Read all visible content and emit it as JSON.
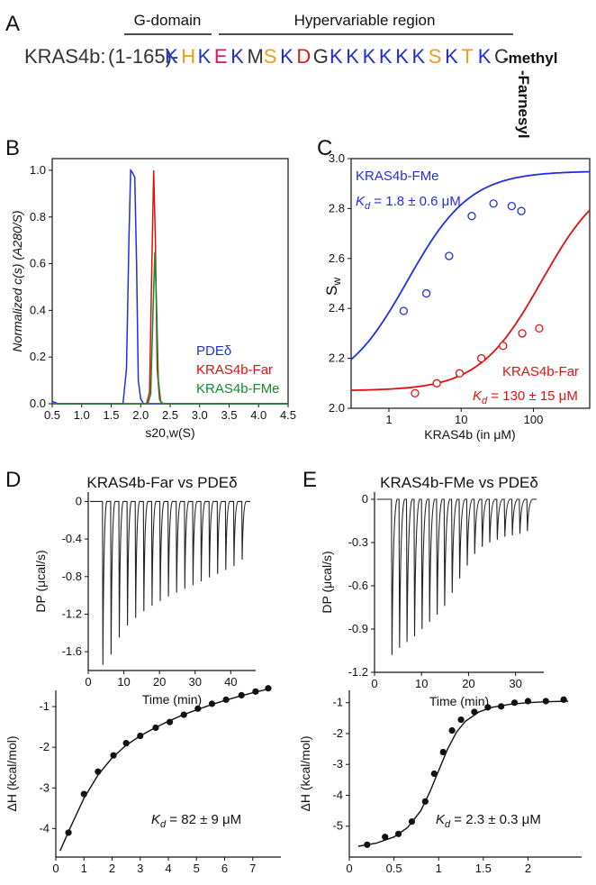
{
  "panel_a": {
    "letter": "A",
    "g_domain_label": "G-domain",
    "hvr_label": "Hypervariable region",
    "protein_prefix": "KRAS4b:",
    "range": "(1-165)-",
    "sequence": [
      {
        "t": "K",
        "c": "#1f2fd0"
      },
      {
        "t": "H",
        "c": "#f29a1c"
      },
      {
        "t": "K",
        "c": "#1f2fd0"
      },
      {
        "t": "E",
        "c": "#e0155f"
      },
      {
        "t": "K",
        "c": "#1f2fd0"
      },
      {
        "t": "M",
        "c": "#333333"
      },
      {
        "t": "S",
        "c": "#f29a1c"
      },
      {
        "t": "K",
        "c": "#1f2fd0"
      },
      {
        "t": "D",
        "c": "#e01818"
      },
      {
        "t": "G",
        "c": "#333333"
      },
      {
        "t": "K",
        "c": "#1f2fd0"
      },
      {
        "t": "K",
        "c": "#1f2fd0"
      },
      {
        "t": "K",
        "c": "#1f2fd0"
      },
      {
        "t": "K",
        "c": "#1f2fd0"
      },
      {
        "t": "K",
        "c": "#1f2fd0"
      },
      {
        "t": "K",
        "c": "#1f2fd0"
      },
      {
        "t": "S",
        "c": "#f29a1c"
      },
      {
        "t": "K",
        "c": "#1f2fd0"
      },
      {
        "t": "T",
        "c": "#f29a1c"
      },
      {
        "t": "K",
        "c": "#1f2fd0"
      },
      {
        "t": "C",
        "c": "#333333"
      }
    ],
    "methyl_label": "-methyl",
    "farnesyl_label": "-Farnesyl"
  },
  "chart_data": [
    {
      "panel": "B",
      "type": "line",
      "xlabel": "s20,w(S)",
      "ylabel": "Normalized c(s) (A280/S)",
      "xlim": [
        0.5,
        4.5
      ],
      "ylim": [
        0,
        1.05
      ],
      "xticks": [
        "0.5",
        "1.0",
        "1.5",
        "2.0",
        "2.5",
        "3.0",
        "3.5",
        "4.0",
        "4.5"
      ],
      "yticks": [
        "0.0",
        "0.2",
        "0.4",
        "0.6",
        "0.8",
        "1.0"
      ],
      "legend_position": "lower-right",
      "series": [
        {
          "name": "PDEδ",
          "color": "#2030e0",
          "x": [
            0.5,
            0.6,
            1.7,
            1.76,
            1.8,
            1.83,
            1.86,
            1.9,
            1.93,
            1.96,
            2.0,
            2.05,
            2.1,
            4.5
          ],
          "y": [
            0.01,
            0,
            0,
            0.15,
            0.7,
            1.0,
            0.99,
            0.97,
            0.6,
            0.1,
            0.02,
            0,
            0,
            0
          ]
        },
        {
          "name": "KRAS4b-Far",
          "color": "#e01010",
          "x": [
            0.5,
            2.1,
            2.15,
            2.19,
            2.22,
            2.25,
            2.28,
            2.32,
            2.36,
            4.5
          ],
          "y": [
            0,
            0,
            0.05,
            0.6,
            1.0,
            0.7,
            0.15,
            0.02,
            0,
            0
          ]
        },
        {
          "name": "KRAS4b-FMe",
          "color": "#138a2c",
          "x": [
            0.5,
            2.12,
            2.17,
            2.21,
            2.24,
            2.27,
            2.3,
            2.34,
            2.38,
            4.5
          ],
          "y": [
            0,
            0,
            0.04,
            0.4,
            0.65,
            0.42,
            0.1,
            0.01,
            0,
            0
          ]
        }
      ]
    },
    {
      "panel": "C",
      "type": "scatter",
      "xlabel": "KRAS4b (in μM)",
      "ylabel": "Sw",
      "xscale": "log",
      "xlim": [
        0.3,
        600
      ],
      "ylim": [
        2.0,
        3.0
      ],
      "xticks": [
        "1",
        "10",
        "100"
      ],
      "yticks": [
        "2.0",
        "2.2",
        "2.4",
        "2.6",
        "2.8",
        "3.0"
      ],
      "series": [
        {
          "name": "KRAS4b-FMe",
          "color": "#2030e0",
          "kd_value": "= 1.8 ± 0.6 μM",
          "x": [
            1.6,
            3.3,
            6.8,
            14,
            28,
            50,
            68
          ],
          "y": [
            2.39,
            2.46,
            2.61,
            2.77,
            2.82,
            2.81,
            2.79
          ],
          "fit": {
            "kd": 1.8,
            "s0": 2.07,
            "smax": 2.95
          }
        },
        {
          "name": "KRAS4b-Far",
          "color": "#e01010",
          "kd_value": "= 130 ± 15 μM",
          "x": [
            2.3,
            4.6,
            9.5,
            19,
            38,
            70,
            120
          ],
          "y": [
            2.06,
            2.1,
            2.14,
            2.2,
            2.25,
            2.3,
            2.32
          ],
          "fit": {
            "kd": 130,
            "s0": 2.07,
            "smax": 2.95
          }
        }
      ]
    },
    {
      "panel": "D",
      "type": "line",
      "title": "KRAS4b-Far vs PDEδ",
      "xlabel": "Time (min)",
      "ylabel": "DP (μcal/s)",
      "xlim": [
        0,
        47
      ],
      "ylim": [
        -1.8,
        0.1
      ],
      "xticks": [
        "0",
        "10",
        "20",
        "30",
        "40"
      ],
      "yticks": [
        "0",
        "-0.4",
        "-0.8",
        "-1.2",
        "-1.6"
      ],
      "injection_times": [
        4,
        6.3,
        8.6,
        10.9,
        13.2,
        15.5,
        17.8,
        20.1,
        22.4,
        24.7,
        27,
        29.3,
        31.6,
        33.9,
        36.2,
        38.5,
        40.8,
        43.1
      ],
      "injection_peaks": [
        -1.74,
        -1.63,
        -1.45,
        -1.32,
        -1.24,
        -1.17,
        -1.11,
        -1.06,
        -1.01,
        -0.97,
        -0.93,
        -0.89,
        -0.85,
        -0.81,
        -0.77,
        -0.73,
        -0.69,
        -0.62
      ]
    },
    {
      "panel": "E",
      "type": "line",
      "title": "KRAS4b-FMe vs PDEδ",
      "xlabel": "Time (min)",
      "ylabel": "DP (μcal/s)",
      "xlim": [
        0,
        36
      ],
      "ylim": [
        -1.2,
        0.05
      ],
      "xticks": [
        "0",
        "10",
        "20",
        "30"
      ],
      "yticks": [
        "0",
        "-0.3",
        "-0.6",
        "-0.9",
        "-1.2"
      ],
      "injection_times": [
        3.6,
        5.2,
        6.8,
        8.4,
        10,
        11.6,
        13.2,
        14.8,
        16.4,
        18,
        19.6,
        21.2,
        22.8,
        24.4,
        26,
        27.6,
        29.2,
        30.8,
        32.4
      ],
      "injection_peaks": [
        -1.08,
        -1.03,
        -0.99,
        -0.95,
        -0.9,
        -0.85,
        -0.8,
        -0.74,
        -0.65,
        -0.55,
        -0.46,
        -0.38,
        -0.33,
        -0.3,
        -0.28,
        -0.26,
        -0.25,
        -0.24,
        -0.22
      ]
    },
    {
      "panel": "D2",
      "type": "scatter",
      "xlabel": "Molar Ratio",
      "ylabel": "ΔH (kcal/mol)",
      "xlim": [
        0,
        8
      ],
      "ylim": [
        -4.7,
        -0.6
      ],
      "xticks": [
        "0",
        "1",
        "2",
        "3",
        "4",
        "5",
        "6",
        "7"
      ],
      "yticks": [
        "-1",
        "-2",
        "-3",
        "-4"
      ],
      "kd_value": "= 82 ± 9 μM",
      "x": [
        0.45,
        1.0,
        1.5,
        2.05,
        2.5,
        3.0,
        3.55,
        4.05,
        4.55,
        5.05,
        5.55,
        6.05,
        6.6,
        7.1,
        7.55
      ],
      "y": [
        -4.1,
        -3.15,
        -2.6,
        -2.2,
        -1.9,
        -1.72,
        -1.52,
        -1.38,
        -1.2,
        -1.05,
        -0.93,
        -0.83,
        -0.72,
        -0.63,
        -0.55
      ],
      "fit_x": [
        0.15,
        0.5,
        1,
        1.5,
        2,
        2.5,
        3,
        3.5,
        4,
        4.5,
        5,
        5.5,
        6,
        6.5,
        7,
        7.6
      ],
      "fit_y": [
        -4.55,
        -4.0,
        -3.25,
        -2.68,
        -2.26,
        -1.95,
        -1.72,
        -1.53,
        -1.36,
        -1.21,
        -1.08,
        -0.96,
        -0.85,
        -0.75,
        -0.66,
        -0.56
      ]
    },
    {
      "panel": "E2",
      "type": "scatter",
      "xlabel": "Molar Ratio",
      "ylabel": "ΔH (kcal/mol)",
      "xlim": [
        0,
        2.6
      ],
      "ylim": [
        -6.0,
        -0.6
      ],
      "xticks": [
        "0",
        "0.5",
        "1",
        "1.5",
        "2"
      ],
      "yticks": [
        "-1",
        "-2",
        "-3",
        "-4",
        "-5"
      ],
      "kd_value": "= 2.3 ± 0.3 μM",
      "x": [
        0.2,
        0.4,
        0.55,
        0.7,
        0.85,
        0.95,
        1.05,
        1.15,
        1.25,
        1.4,
        1.55,
        1.7,
        1.85,
        2.0,
        2.2,
        2.4
      ],
      "y": [
        -5.6,
        -5.35,
        -5.25,
        -4.85,
        -4.2,
        -3.3,
        -2.6,
        -1.9,
        -1.55,
        -1.3,
        -1.15,
        -1.12,
        -1.0,
        -0.95,
        -0.95,
        -0.9
      ],
      "fit_x": [
        0.1,
        0.3,
        0.5,
        0.65,
        0.8,
        0.9,
        1.0,
        1.1,
        1.2,
        1.3,
        1.45,
        1.6,
        1.8,
        2.0,
        2.2,
        2.45
      ],
      "fit_y": [
        -5.65,
        -5.55,
        -5.35,
        -5.05,
        -4.5,
        -3.9,
        -3.2,
        -2.5,
        -1.95,
        -1.6,
        -1.3,
        -1.15,
        -1.05,
        -1.0,
        -0.97,
        -0.95
      ]
    }
  ]
}
